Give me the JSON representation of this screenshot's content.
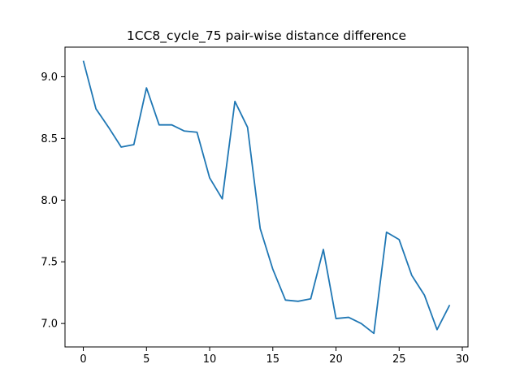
{
  "chart_data": {
    "type": "line",
    "title": "1CC8_cycle_75 pair-wise distance difference",
    "xlabel": "",
    "ylabel": "",
    "xlim": [
      -1.45,
      30.45
    ],
    "ylim": [
      6.81,
      9.24
    ],
    "xticks": [
      0,
      5,
      10,
      15,
      20,
      25,
      30
    ],
    "xtick_labels": [
      "0",
      "5",
      "10",
      "15",
      "20",
      "25",
      "30"
    ],
    "yticks": [
      7.0,
      7.5,
      8.0,
      8.5,
      9.0
    ],
    "ytick_labels": [
      "7.0",
      "7.5",
      "8.0",
      "8.5",
      "9.0"
    ],
    "grid": false,
    "series": [
      {
        "color": "#1f77b4",
        "x": [
          0,
          1,
          2,
          3,
          4,
          5,
          6,
          7,
          8,
          9,
          10,
          11,
          12,
          13,
          14,
          15,
          16,
          17,
          18,
          19,
          20,
          21,
          22,
          23,
          24,
          25,
          26,
          27,
          28,
          29
        ],
        "values": [
          9.13,
          8.74,
          8.59,
          8.43,
          8.45,
          8.91,
          8.61,
          8.61,
          8.56,
          8.55,
          8.18,
          8.01,
          8.8,
          8.59,
          7.77,
          7.44,
          7.19,
          7.18,
          7.2,
          7.6,
          7.04,
          7.05,
          7.0,
          6.92,
          7.74,
          7.68,
          7.39,
          7.23,
          6.95,
          7.15
        ]
      }
    ]
  }
}
